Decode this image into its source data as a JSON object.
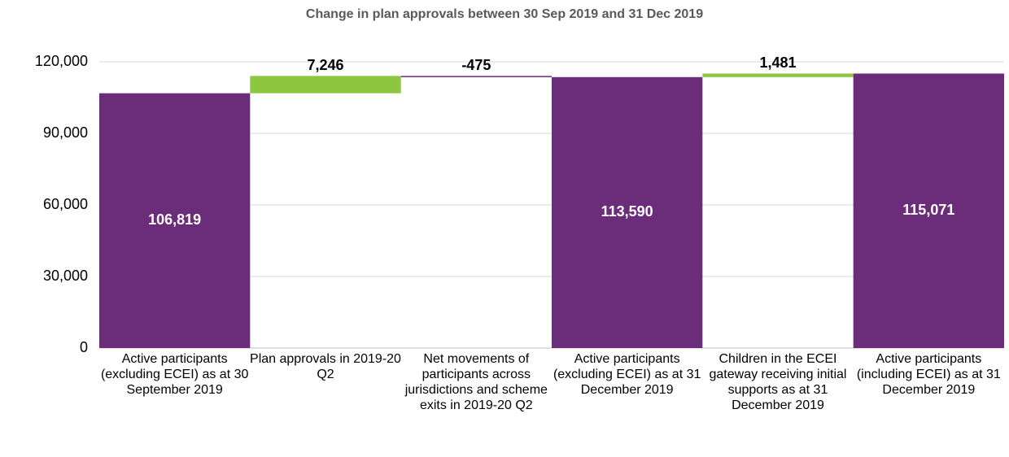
{
  "chart_data": {
    "type": "waterfall",
    "title": "Change in plan approvals between 30 Sep 2019 and 31 Dec 2019",
    "categories": [
      "Active participants (excluding ECEI) as at 30 September 2019",
      "Plan approvals in 2019-20 Q2",
      "Net movements of participants across jurisdictions and scheme exits in 2019-20 Q2",
      "Active participants (excluding ECEI) as at 31 December 2019",
      "Children in the ECEI gateway receiving initial supports as at 31 December 2019",
      "Active participants (including ECEI) as at 31 December 2019"
    ],
    "values": [
      106819,
      7246,
      -475,
      113590,
      1481,
      115071
    ],
    "value_labels": [
      "106,819",
      "7,246",
      "-475",
      "113,590",
      "1,481",
      "115,071"
    ],
    "measure": [
      "total",
      "relative",
      "relative",
      "total",
      "relative",
      "total"
    ],
    "colors": {
      "total": "#6b2c7a",
      "increase": "#8dc63f",
      "decrease": "#6b2c7a"
    },
    "ylim": [
      0,
      120000
    ],
    "yticks": [
      0,
      {
        "value": 30000,
        "label": "30,000"
      },
      {
        "value": 60000,
        "label": "60,000"
      },
      {
        "value": 90000,
        "label": "90,000"
      },
      {
        "value": 120000,
        "label": "120,000"
      }
    ],
    "grid": true
  }
}
